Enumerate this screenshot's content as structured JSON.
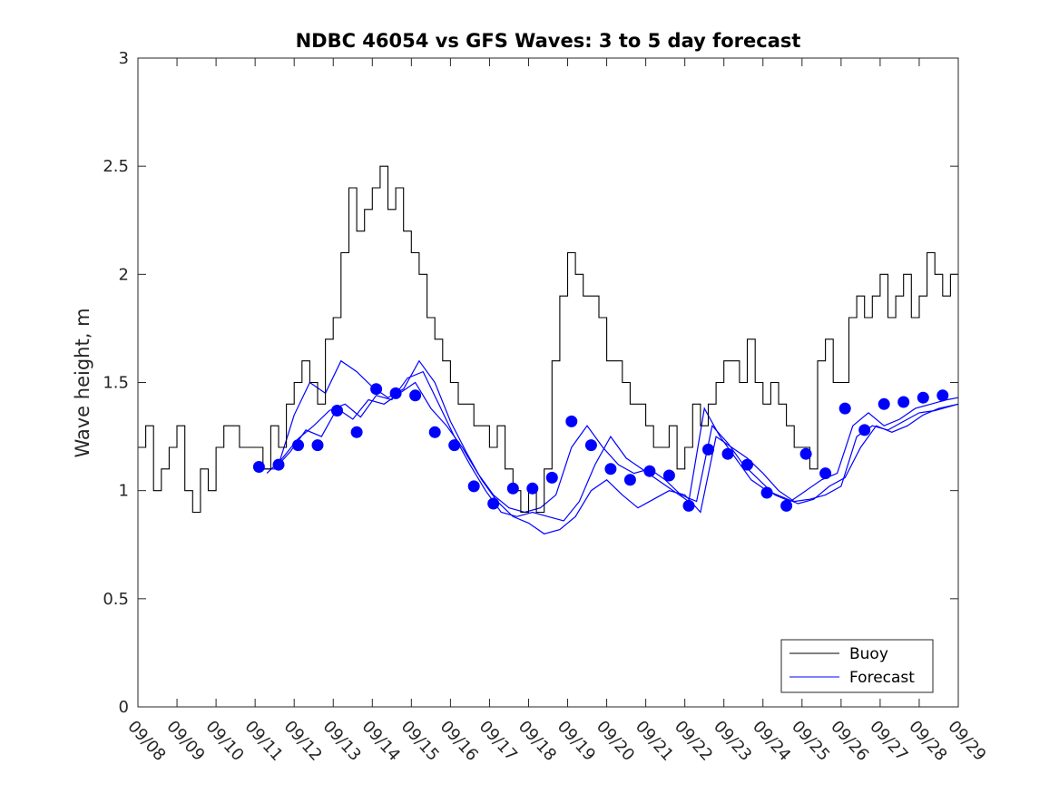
{
  "chart_data": {
    "type": "line",
    "title": "NDBC 46054 vs GFS Waves: 3 to 5 day forecast",
    "xlabel": "",
    "ylabel": "Wave height, m",
    "xlim": [
      0,
      21
    ],
    "ylim": [
      0,
      3
    ],
    "yticks": [
      0,
      0.5,
      1,
      1.5,
      2,
      2.5,
      3
    ],
    "ytick_labels": [
      "0",
      "0.5",
      "1",
      "1.5",
      "2",
      "2.5",
      "3"
    ],
    "xtick_labels": [
      "09/08",
      "09/09",
      "09/10",
      "09/11",
      "09/12",
      "09/13",
      "09/14",
      "09/15",
      "09/16",
      "09/17",
      "09/18",
      "09/19",
      "09/20",
      "09/21",
      "09/22",
      "09/23",
      "09/24",
      "09/25",
      "09/26",
      "09/27",
      "09/28",
      "09/29"
    ],
    "legend": {
      "position": "bottom-right",
      "entries": [
        "Buoy",
        "Forecast"
      ]
    },
    "colors": {
      "buoy": "#000000",
      "forecast": "#0000ff"
    },
    "series": [
      {
        "name": "Buoy",
        "x": [
          0,
          0.2,
          0.4,
          0.6,
          0.8,
          1.0,
          1.2,
          1.4,
          1.6,
          1.8,
          2.0,
          2.2,
          2.4,
          2.6,
          2.8,
          3.0,
          3.2,
          3.4,
          3.6,
          3.8,
          4.0,
          4.2,
          4.4,
          4.6,
          4.8,
          5.0,
          5.2,
          5.4,
          5.6,
          5.8,
          6.0,
          6.2,
          6.4,
          6.6,
          6.8,
          7.0,
          7.2,
          7.4,
          7.6,
          7.8,
          8.0,
          8.2,
          8.4,
          8.6,
          8.8,
          9.0,
          9.2,
          9.4,
          9.6,
          9.8,
          10.0,
          10.2,
          10.4,
          10.6,
          10.8,
          11.0,
          11.2,
          11.4,
          11.6,
          11.8,
          12.0,
          12.2,
          12.4,
          12.6,
          12.8,
          13.0,
          13.2,
          13.4,
          13.6,
          13.8,
          14.0,
          14.2,
          14.4,
          14.6,
          14.8,
          15.0,
          15.2,
          15.4,
          15.6,
          15.8,
          16.0,
          16.2,
          16.4,
          16.6,
          16.8,
          17.0,
          17.2,
          17.4,
          17.6,
          17.8,
          18.0,
          18.2,
          18.4,
          18.6,
          18.8,
          19.0,
          19.2,
          19.4,
          19.6,
          19.8,
          20.0,
          20.2,
          20.4,
          20.6,
          20.8,
          21.0
        ],
        "values": [
          1.2,
          1.3,
          1.0,
          1.1,
          1.2,
          1.3,
          1.0,
          0.9,
          1.1,
          1.0,
          1.2,
          1.3,
          1.3,
          1.2,
          1.2,
          1.2,
          1.1,
          1.3,
          1.2,
          1.4,
          1.5,
          1.6,
          1.5,
          1.4,
          1.7,
          1.8,
          2.1,
          2.4,
          2.2,
          2.3,
          2.4,
          2.5,
          2.3,
          2.4,
          2.2,
          2.1,
          2.0,
          1.8,
          1.7,
          1.6,
          1.5,
          1.4,
          1.4,
          1.3,
          1.3,
          1.2,
          1.3,
          1.1,
          1.0,
          0.9,
          1.0,
          0.9,
          1.1,
          1.6,
          1.9,
          2.1,
          2.0,
          1.9,
          1.9,
          1.8,
          1.6,
          1.6,
          1.5,
          1.4,
          1.4,
          1.3,
          1.2,
          1.2,
          1.3,
          1.1,
          1.2,
          1.4,
          1.3,
          1.4,
          1.5,
          1.6,
          1.6,
          1.5,
          1.7,
          1.5,
          1.4,
          1.5,
          1.4,
          1.3,
          1.2,
          1.2,
          1.1,
          1.6,
          1.7,
          1.5,
          1.5,
          1.8,
          1.9,
          1.8,
          1.9,
          2.0,
          1.8,
          1.9,
          2.0,
          1.8,
          1.9,
          2.1,
          2.0,
          1.9,
          2.0,
          2.0
        ]
      },
      {
        "name": "Forecast",
        "x": [
          3.1,
          3.6,
          4.1,
          4.6,
          5.1,
          5.6,
          6.1,
          6.6,
          7.1,
          7.6,
          8.1,
          8.6,
          9.1,
          9.6,
          10.1,
          10.6,
          11.1,
          11.6,
          12.1,
          12.6,
          13.1,
          13.6,
          14.1,
          14.6,
          15.1,
          15.6,
          16.1,
          16.6,
          17.1,
          17.6,
          18.1,
          18.6,
          19.1,
          19.6,
          20.1,
          20.6
        ],
        "values": [
          1.11,
          1.12,
          1.21,
          1.21,
          1.37,
          1.27,
          1.47,
          1.45,
          1.44,
          1.27,
          1.21,
          1.02,
          0.94,
          1.01,
          1.01,
          1.06,
          1.32,
          1.21,
          1.1,
          1.05,
          1.09,
          1.07,
          0.93,
          1.19,
          1.17,
          1.12,
          0.99,
          0.93,
          1.17,
          1.08,
          1.38,
          1.28,
          1.4,
          1.41,
          1.43,
          1.44
        ]
      }
    ],
    "forecast_runs": [
      {
        "name": "run1",
        "x": [
          3.1,
          3.5,
          3.9,
          4.3,
          4.7,
          5.1,
          5.5,
          5.9,
          6.3,
          6.7,
          7.1,
          7.5,
          7.9,
          8.3,
          8.7,
          9.1,
          9.5,
          9.9,
          10.3,
          10.7,
          11.1,
          11.5,
          11.9,
          12.3,
          12.7,
          13.1,
          13.5,
          13.9,
          14.3,
          14.7,
          15.1,
          15.5,
          15.9,
          16.3,
          16.7,
          17.1,
          17.5,
          17.9,
          18.3,
          18.7,
          19.1,
          19.5,
          19.9,
          20.3,
          20.7,
          21.0
        ],
        "values": [
          1.1,
          1.1,
          1.18,
          1.28,
          1.25,
          1.38,
          1.33,
          1.42,
          1.4,
          1.45,
          1.5,
          1.38,
          1.3,
          1.2,
          1.08,
          0.98,
          0.92,
          0.9,
          0.92,
          0.98,
          1.2,
          1.3,
          1.2,
          1.12,
          1.08,
          1.1,
          1.05,
          0.98,
          0.95,
          1.3,
          1.22,
          1.12,
          1.05,
          0.98,
          0.95,
          1.0,
          1.05,
          1.08,
          1.3,
          1.36,
          1.3,
          1.33,
          1.38,
          1.4,
          1.42,
          1.43
        ]
      },
      {
        "name": "run2",
        "x": [
          3.3,
          3.7,
          4.1,
          4.5,
          4.9,
          5.3,
          5.7,
          6.1,
          6.5,
          6.9,
          7.3,
          7.7,
          8.1,
          8.5,
          8.9,
          9.3,
          9.7,
          10.1,
          10.5,
          10.9,
          11.3,
          11.7,
          12.1,
          12.5,
          12.9,
          13.3,
          13.7,
          14.1,
          14.5,
          14.9,
          15.3,
          15.7,
          16.1,
          16.5,
          16.9,
          17.3,
          17.7,
          18.1,
          18.5,
          18.9,
          19.3,
          19.7,
          20.1,
          20.5,
          21.0
        ],
        "values": [
          1.08,
          1.15,
          1.24,
          1.3,
          1.37,
          1.4,
          1.34,
          1.44,
          1.42,
          1.52,
          1.55,
          1.4,
          1.25,
          1.12,
          1.0,
          0.9,
          0.88,
          0.9,
          0.88,
          0.86,
          0.95,
          1.12,
          1.25,
          1.15,
          1.1,
          1.05,
          1.0,
          0.95,
          1.38,
          1.25,
          1.15,
          1.05,
          1.0,
          0.97,
          0.94,
          0.96,
          1.02,
          1.06,
          1.2,
          1.3,
          1.27,
          1.3,
          1.35,
          1.38,
          1.4
        ]
      },
      {
        "name": "run3",
        "x": [
          3.6,
          4.0,
          4.4,
          4.8,
          5.2,
          5.6,
          6.0,
          6.4,
          6.8,
          7.2,
          7.6,
          8.0,
          8.4,
          8.8,
          9.2,
          9.6,
          10.0,
          10.4,
          10.8,
          11.2,
          11.6,
          12.0,
          12.4,
          12.8,
          13.2,
          13.6,
          14.0,
          14.4,
          14.8,
          15.2,
          15.6,
          16.0,
          16.4,
          16.8,
          17.2,
          17.6,
          18.0,
          18.4,
          18.8,
          19.2,
          19.6,
          20.0,
          20.4,
          21.0
        ],
        "values": [
          1.12,
          1.35,
          1.5,
          1.45,
          1.6,
          1.55,
          1.48,
          1.43,
          1.47,
          1.6,
          1.5,
          1.32,
          1.18,
          1.05,
          0.95,
          0.88,
          0.85,
          0.8,
          0.82,
          0.88,
          1.0,
          1.05,
          0.98,
          0.92,
          0.96,
          1.0,
          0.98,
          0.9,
          1.25,
          1.2,
          1.15,
          1.08,
          1.0,
          0.95,
          0.96,
          0.98,
          1.02,
          1.25,
          1.3,
          1.28,
          1.32,
          1.36,
          1.37,
          1.4
        ]
      }
    ]
  }
}
